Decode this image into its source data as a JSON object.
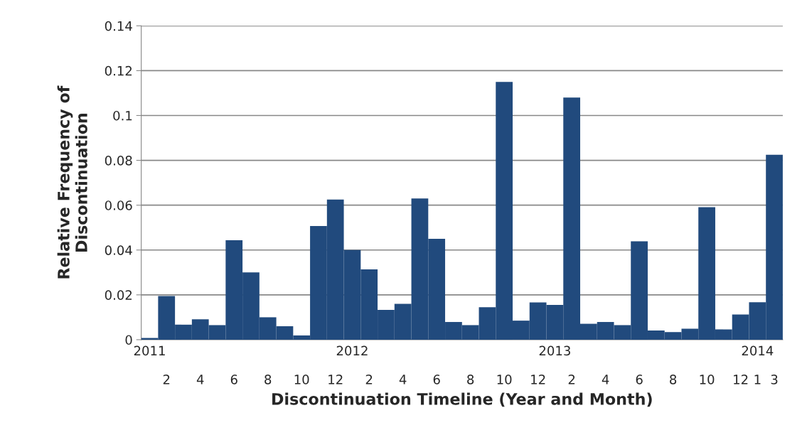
{
  "chart_data": {
    "type": "bar",
    "xlabel": "Discontinuation Timeline (Year and Month)",
    "ylabel": "Relative Frequency of\nDiscontinuation",
    "categories": [
      "2011\n\n",
      "\n\n2",
      null,
      "\n\n4",
      null,
      "\n\n6",
      null,
      "\n\n8",
      null,
      "\n\n10",
      null,
      "\n\n12",
      "2012\n\n",
      "\n\n2",
      null,
      "\n\n4",
      null,
      "\n\n6",
      null,
      "\n\n8",
      null,
      "\n\n10",
      null,
      "\n\n12",
      "2013\n\n",
      "\n\n2",
      null,
      "\n\n4",
      null,
      "\n\n6",
      null,
      "\n\n8",
      null,
      "\n\n10",
      null,
      "\n\n12",
      "2014\n\n1",
      "\n\n3"
    ],
    "values": [
      0.0008,
      0.0195,
      0.0067,
      0.0091,
      0.0065,
      0.0444,
      0.03,
      0.01,
      0.006,
      0.0019,
      0.0507,
      0.0625,
      0.04,
      0.0314,
      0.0133,
      0.016,
      0.063,
      0.045,
      0.0079,
      0.0065,
      0.0145,
      0.115,
      0.0085,
      0.0166,
      0.0155,
      0.108,
      0.0071,
      0.0079,
      0.0065,
      0.0439,
      0.0041,
      0.0034,
      0.0049,
      0.0591,
      0.0046,
      0.0112,
      0.0167,
      0.0825
    ],
    "color": "#214a7d",
    "ylim": [
      0,
      0.14
    ],
    "yticks": [
      {
        "value": 0,
        "label": "0"
      },
      0.02,
      0.04,
      0.06,
      0.08,
      {
        "value": 0.1,
        "label": "0.1"
      },
      0.12,
      0.14
    ],
    "grid": "y"
  }
}
